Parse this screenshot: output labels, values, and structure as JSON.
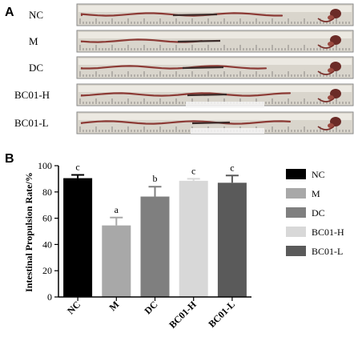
{
  "panel_a": {
    "letter": "A",
    "rows": [
      {
        "label": "NC",
        "intestine_fraction": 0.84
      },
      {
        "label": "M",
        "intestine_fraction": 0.52
      },
      {
        "label": "DC",
        "intestine_fraction": 0.78
      },
      {
        "label": "BC01-H",
        "intestine_fraction": 0.86
      },
      {
        "label": "BC01-L",
        "intestine_fraction": 0.87
      }
    ]
  },
  "panel_b": {
    "letter": "B"
  },
  "chart_data": {
    "type": "bar",
    "ylabel": "Intestinal Propulsion Rate/%",
    "xlabel": "",
    "ylim": [
      0,
      100
    ],
    "yticks": [
      0,
      20,
      40,
      60,
      80,
      100
    ],
    "categories": [
      "NC",
      "M",
      "DC",
      "BC01-H",
      "BC01-L"
    ],
    "values": [
      90.5,
      54.5,
      76.5,
      88.5,
      87.0
    ],
    "errors": [
      2.5,
      6.0,
      7.5,
      1.5,
      5.5
    ],
    "significance": [
      "c",
      "a",
      "b",
      "c",
      "c"
    ],
    "colors": [
      "#000000",
      "#a8a8a8",
      "#7f7f7f",
      "#d8d8d8",
      "#5a5a5a"
    ],
    "legend": {
      "position": "right",
      "entries": [
        "NC",
        "M",
        "DC",
        "BC01-H",
        "BC01-L"
      ]
    }
  }
}
